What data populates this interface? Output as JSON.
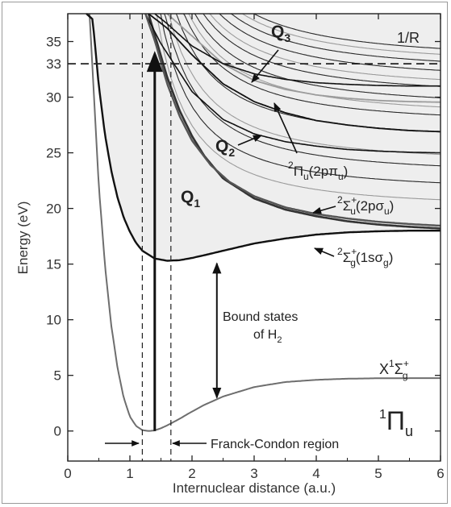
{
  "chart_data": {
    "type": "line",
    "xlabel": "Internuclear distance (a.u.)",
    "ylabel": "Energy (eV)",
    "xlim": [
      0,
      6
    ],
    "ylim": [
      -2.7,
      37.5
    ],
    "x_ticks": [
      0,
      1,
      2,
      3,
      4,
      5,
      6
    ],
    "y_ticks": [
      0,
      5,
      10,
      15,
      20,
      25,
      30,
      35
    ],
    "x_tick_labels": [
      "0",
      "1",
      "2",
      "3",
      "4",
      "5",
      "6"
    ],
    "y_tick_labels": [
      "0",
      "5",
      "10",
      "15",
      "20",
      "25",
      "30",
      "35"
    ],
    "extra_y_tick": {
      "value": 33,
      "label": "33"
    },
    "grid": false,
    "colors": {
      "bound": "#6e6e6e",
      "ion": "#111111",
      "continuum_fill": "#eeeeee",
      "q3": "#9b9b9b"
    },
    "series": [
      {
        "name": "X¹Σg⁺",
        "x": [
          0.35,
          0.5,
          0.6,
          0.7,
          0.8,
          0.9,
          1.0,
          1.1,
          1.2,
          1.3,
          1.4,
          1.5,
          1.6,
          1.8,
          2.0,
          2.2,
          2.5,
          3.0,
          3.5,
          4.0,
          4.5,
          5.0,
          5.5,
          6.0
        ],
        "y": [
          37.5,
          22.0,
          14.8,
          9.5,
          5.7,
          3.0,
          1.3,
          0.45,
          0.08,
          0.0,
          0.05,
          0.25,
          0.5,
          1.1,
          1.75,
          2.35,
          3.1,
          3.95,
          4.4,
          4.6,
          4.7,
          4.74,
          4.75,
          4.75
        ]
      },
      {
        "name": "²Σg⁺(1sσg)",
        "x": [
          0.3,
          0.4,
          0.5,
          0.6,
          0.7,
          0.8,
          0.9,
          1.0,
          1.1,
          1.2,
          1.4,
          1.6,
          1.8,
          2.0,
          2.2,
          2.5,
          3.0,
          3.5,
          4.0,
          4.5,
          5.0,
          5.5,
          6.0
        ],
        "y": [
          37.5,
          37.0,
          31.0,
          26.6,
          23.4,
          21.0,
          19.2,
          17.9,
          16.9,
          16.2,
          15.5,
          15.3,
          15.35,
          15.55,
          15.8,
          16.2,
          16.85,
          17.3,
          17.65,
          17.85,
          17.95,
          18.0,
          18.0
        ]
      },
      {
        "name": "²Σu⁺(2pσu)",
        "x": [
          1.3,
          1.4,
          1.6,
          1.8,
          2.0,
          2.2,
          2.5,
          3.0,
          3.5,
          4.0,
          4.5,
          5.0,
          5.5,
          6.0
        ],
        "y": [
          37.5,
          35.6,
          31.8,
          28.8,
          26.5,
          24.7,
          22.7,
          20.9,
          19.9,
          19.3,
          18.85,
          18.55,
          18.35,
          18.2
        ]
      },
      {
        "name": "²Πu(2pπu)",
        "x": [
          1.3,
          1.6,
          2.0,
          2.5,
          3.0,
          3.5,
          4.0,
          4.5,
          5.0,
          5.5,
          6.0
        ],
        "y": [
          37.5,
          36.2,
          33.8,
          31.2,
          29.6,
          28.6,
          27.9,
          27.5,
          27.2,
          27.0,
          26.9
        ]
      },
      {
        "name": "Q₂",
        "x": [
          1.25,
          1.5,
          2.0,
          2.5,
          3.0,
          3.5,
          4.0,
          4.5,
          5.0,
          5.5,
          6.0
        ],
        "y": [
          37.5,
          34.8,
          30.5,
          28.0,
          26.7,
          26.0,
          25.6,
          25.3,
          25.15,
          25.05,
          25.0
        ]
      },
      {
        "name": "Q₁",
        "x": [
          1.25,
          1.4,
          1.6,
          1.8,
          2.0,
          2.3,
          2.6,
          3.0,
          3.5,
          4.0,
          4.5,
          5.0,
          5.5,
          6.0
        ],
        "y": [
          37.5,
          35.1,
          31.2,
          28.3,
          26.1,
          23.9,
          22.4,
          21.1,
          20.1,
          19.5,
          19.1,
          18.8,
          18.6,
          18.45
        ]
      },
      {
        "name": "Q₃",
        "x": [
          1.6,
          2.0,
          2.5,
          3.0,
          3.5,
          4.0,
          4.5,
          5.0,
          5.5,
          6.0
        ],
        "y": [
          37.5,
          35.5,
          33.0,
          31.5,
          30.7,
          30.2,
          29.9,
          29.7,
          29.6,
          29.55
        ]
      },
      {
        "name": "1/R",
        "x": [
          1.4,
          1.6,
          2.0,
          2.5,
          3.0,
          3.5,
          4.0,
          4.5,
          5.0,
          5.5,
          6.0
        ],
        "y": [
          37.5,
          36.6,
          34.6,
          33.0,
          32.1,
          31.6,
          31.3,
          31.15,
          31.05,
          31.0,
          31.0
        ]
      }
    ],
    "annotations": [
      {
        "text": "Bound states",
        "text2": "of H",
        "sub": "2"
      },
      {
        "text": "Franck-Condon region"
      },
      {
        "text": "1/R"
      }
    ],
    "franck_condon": [
      1.2,
      1.66
    ],
    "arrows": {
      "vertical_excitation": {
        "x": 1.4,
        "y_from": 0.0,
        "y_to": 33
      },
      "bound_range": {
        "x": 2.4,
        "y_from": 0.0,
        "y_to": 15.35
      }
    }
  }
}
